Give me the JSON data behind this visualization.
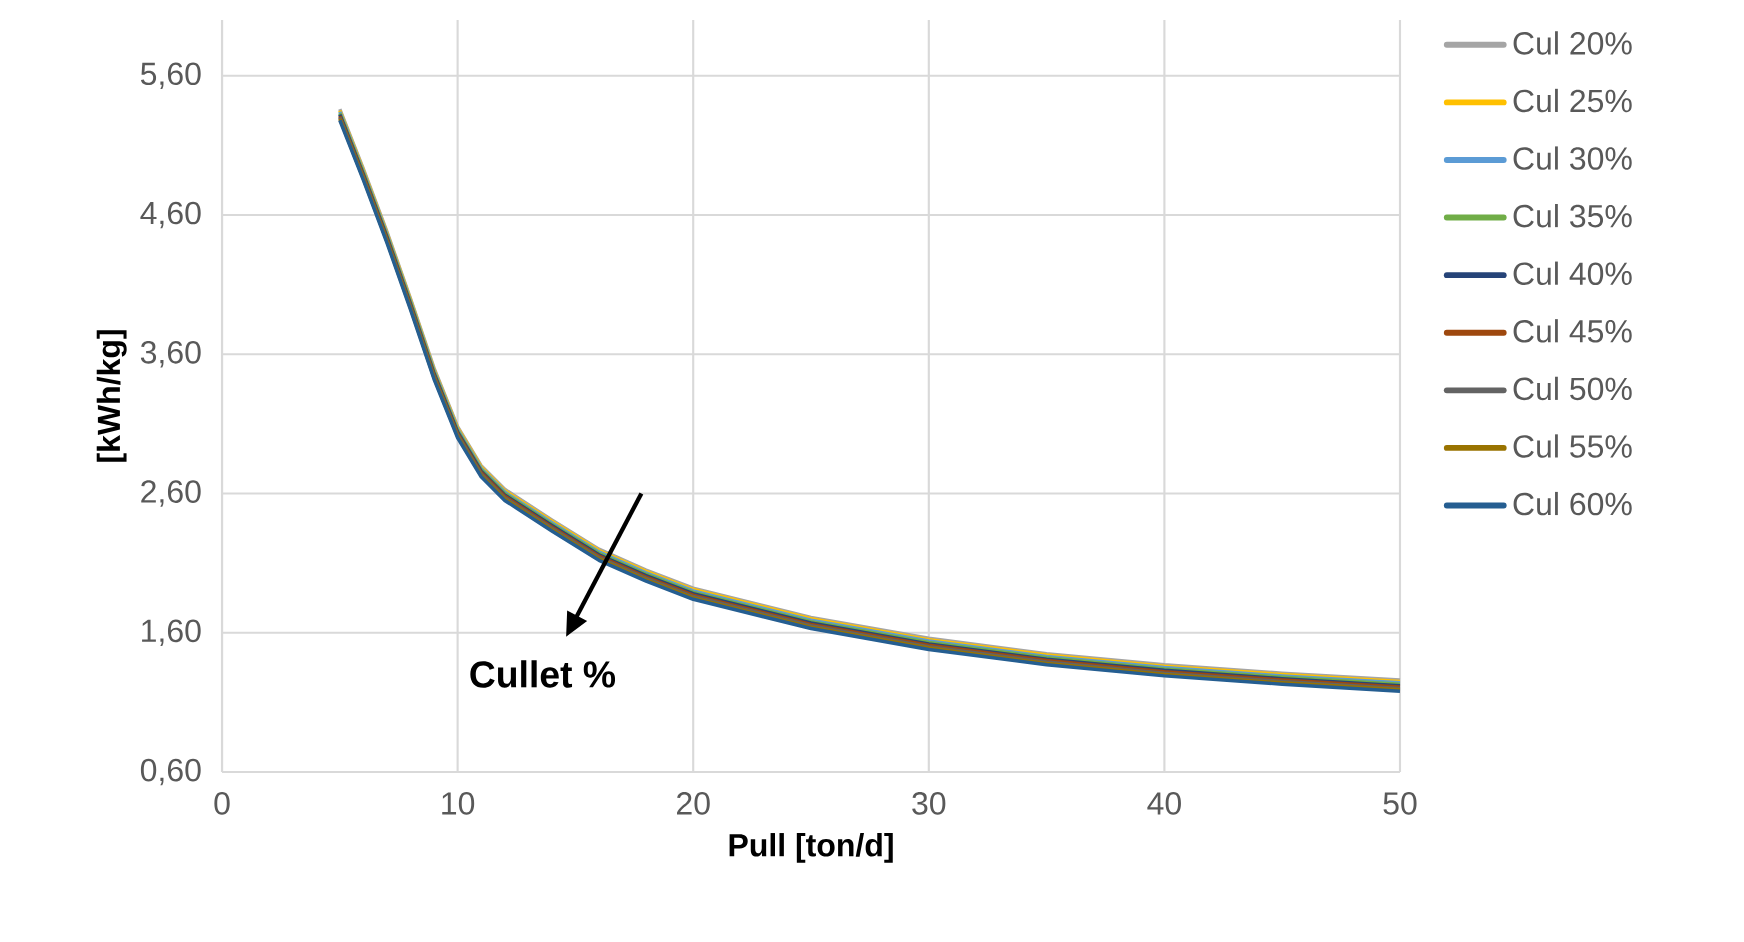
{
  "chart_data": {
    "type": "line",
    "xlabel": "Pull [ton/d]",
    "ylabel": "[kWh/kg]",
    "x": [
      5,
      6,
      7,
      8,
      9,
      10,
      11,
      12,
      14,
      16,
      18,
      20,
      25,
      30,
      35,
      40,
      45,
      50
    ],
    "xlim": [
      0,
      50
    ],
    "xticks": [
      0,
      10,
      20,
      30,
      40,
      50
    ],
    "ylim": [
      0.6,
      6.0
    ],
    "yticks": [
      {
        "value": 0.6,
        "label": "0,60"
      },
      {
        "value": 1.6,
        "label": "1,60"
      },
      {
        "value": 2.6,
        "label": "2,60"
      },
      {
        "value": 3.6,
        "label": "3,60"
      },
      {
        "value": 4.6,
        "label": "4,60"
      },
      {
        "value": 5.6,
        "label": "5,60"
      }
    ],
    "grid": true,
    "legend": "right",
    "marker": "none",
    "line_style": "solid",
    "annotations": [
      "Cullet %"
    ],
    "series": [
      {
        "name": "Cul 20%",
        "color": "#a5a5a5",
        "values": [
          5.36,
          4.93,
          4.48,
          4.0,
          3.5,
          3.08,
          2.8,
          2.63,
          2.41,
          2.2,
          2.05,
          1.92,
          1.71,
          1.56,
          1.45,
          1.37,
          1.31,
          1.26
        ]
      },
      {
        "name": "Cul 25%",
        "color": "#ffc000",
        "values": [
          5.35,
          4.92,
          4.47,
          3.99,
          3.49,
          3.07,
          2.79,
          2.62,
          2.4,
          2.19,
          2.04,
          1.91,
          1.7,
          1.55,
          1.44,
          1.36,
          1.3,
          1.25
        ]
      },
      {
        "name": "Cul 30%",
        "color": "#5b9bd5",
        "values": [
          5.34,
          4.91,
          4.46,
          3.98,
          3.48,
          3.06,
          2.78,
          2.61,
          2.39,
          2.18,
          2.03,
          1.9,
          1.69,
          1.54,
          1.43,
          1.35,
          1.29,
          1.24
        ]
      },
      {
        "name": "Cul 35%",
        "color": "#70ad47",
        "values": [
          5.33,
          4.9,
          4.45,
          3.97,
          3.47,
          3.05,
          2.77,
          2.6,
          2.38,
          2.17,
          2.02,
          1.89,
          1.68,
          1.53,
          1.42,
          1.34,
          1.28,
          1.23
        ]
      },
      {
        "name": "Cul 40%",
        "color": "#264478",
        "values": [
          5.32,
          4.89,
          4.44,
          3.96,
          3.46,
          3.04,
          2.76,
          2.59,
          2.37,
          2.16,
          2.01,
          1.88,
          1.67,
          1.52,
          1.41,
          1.33,
          1.27,
          1.22
        ]
      },
      {
        "name": "Cul 45%",
        "color": "#9e480e",
        "values": [
          5.31,
          4.88,
          4.43,
          3.95,
          3.45,
          3.03,
          2.75,
          2.58,
          2.36,
          2.15,
          2.0,
          1.87,
          1.66,
          1.51,
          1.4,
          1.32,
          1.26,
          1.21
        ]
      },
      {
        "name": "Cul 50%",
        "color": "#636363",
        "values": [
          5.3,
          4.87,
          4.42,
          3.94,
          3.44,
          3.02,
          2.74,
          2.57,
          2.35,
          2.14,
          1.99,
          1.86,
          1.65,
          1.5,
          1.39,
          1.31,
          1.25,
          1.2
        ]
      },
      {
        "name": "Cul 55%",
        "color": "#997300",
        "values": [
          5.29,
          4.86,
          4.41,
          3.93,
          3.43,
          3.01,
          2.73,
          2.56,
          2.34,
          2.13,
          1.98,
          1.85,
          1.64,
          1.49,
          1.38,
          1.3,
          1.24,
          1.19
        ]
      },
      {
        "name": "Cul 60%",
        "color": "#255e91",
        "values": [
          5.28,
          4.85,
          4.4,
          3.92,
          3.42,
          3.0,
          2.72,
          2.55,
          2.33,
          2.12,
          1.97,
          1.84,
          1.63,
          1.48,
          1.37,
          1.29,
          1.23,
          1.18
        ]
      }
    ]
  }
}
